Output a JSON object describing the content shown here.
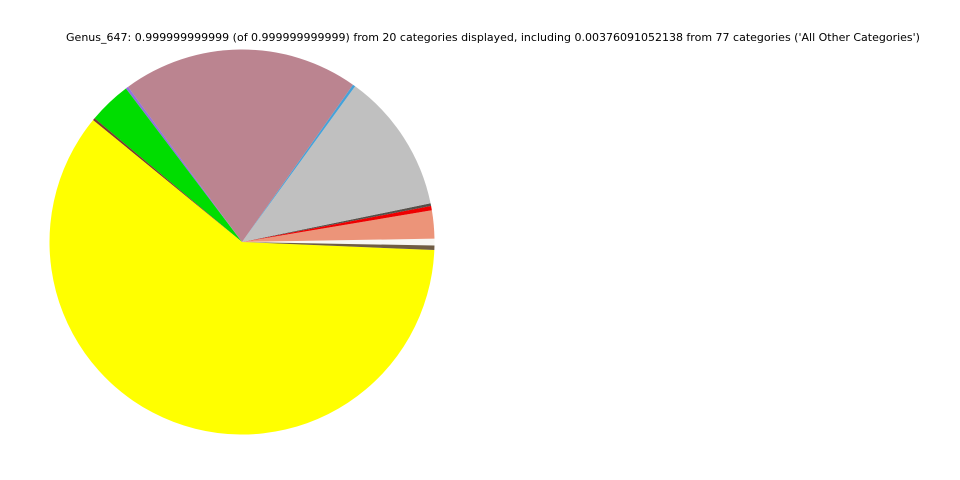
{
  "chart_data": {
    "type": "pie",
    "title": "Genus_647: 0.999999999999 (of 0.999999999999) from 20 categories displayed, including 0.00376091052138 from 77 categories ('All Other Categories')",
    "displayed_fraction": "0.999999999999",
    "total_fraction": "0.999999999999",
    "categories_displayed": 20,
    "all_other_fraction": "0.00376091052138",
    "all_other_categories_count": 77,
    "all_other_label": "All Other Categories",
    "legend_position": "none",
    "labels_shown": false,
    "slices": [
      {
        "name": "white-slice",
        "color": "#f7f7f3",
        "start_deg": -1.05,
        "end_deg": 1.0,
        "fraction_est": 0.0057
      },
      {
        "name": "darksalmon-slice",
        "color": "#ec9479",
        "start_deg": 1.0,
        "end_deg": 9.5,
        "fraction_est": 0.0236
      },
      {
        "name": "red-sliver",
        "color": "#ee0000",
        "start_deg": 9.5,
        "end_deg": 10.8,
        "fraction_est": 0.0036
      },
      {
        "name": "dark-gray-sliver",
        "color": "#55504a",
        "start_deg": 10.8,
        "end_deg": 11.6,
        "fraction_est": 0.0022
      },
      {
        "name": "silver-slice",
        "color": "#c0c0c0",
        "start_deg": 11.6,
        "end_deg": 54.0,
        "fraction_est": 0.1178
      },
      {
        "name": "blue-sliver",
        "color": "#45a2d9",
        "start_deg": 54.0,
        "end_deg": 54.8,
        "fraction_est": 0.0022
      },
      {
        "name": "rosybrown-slice",
        "color": "#bb8490",
        "start_deg": 54.8,
        "end_deg": 126.3,
        "fraction_est": 0.1986
      },
      {
        "name": "mediumpurple-sliver",
        "color": "#9370db",
        "start_deg": 126.3,
        "end_deg": 127.1,
        "fraction_est": 0.0022
      },
      {
        "name": "green-slice",
        "color": "#00dd00",
        "start_deg": 127.1,
        "end_deg": 140.0,
        "fraction_est": 0.0358
      },
      {
        "name": "darkred-sliver",
        "color": "#7a3b2e",
        "start_deg": 140.0,
        "end_deg": 140.7,
        "fraction_est": 0.0019
      },
      {
        "name": "yellow-slice",
        "color": "#ffff00",
        "start_deg": 140.7,
        "end_deg": 357.6,
        "fraction_est": 0.6025
      },
      {
        "name": "brown-sliver",
        "color": "#6f5c43",
        "start_deg": 357.6,
        "end_deg": 358.95,
        "fraction_est": 0.0038
      }
    ]
  },
  "layout_note": ""
}
